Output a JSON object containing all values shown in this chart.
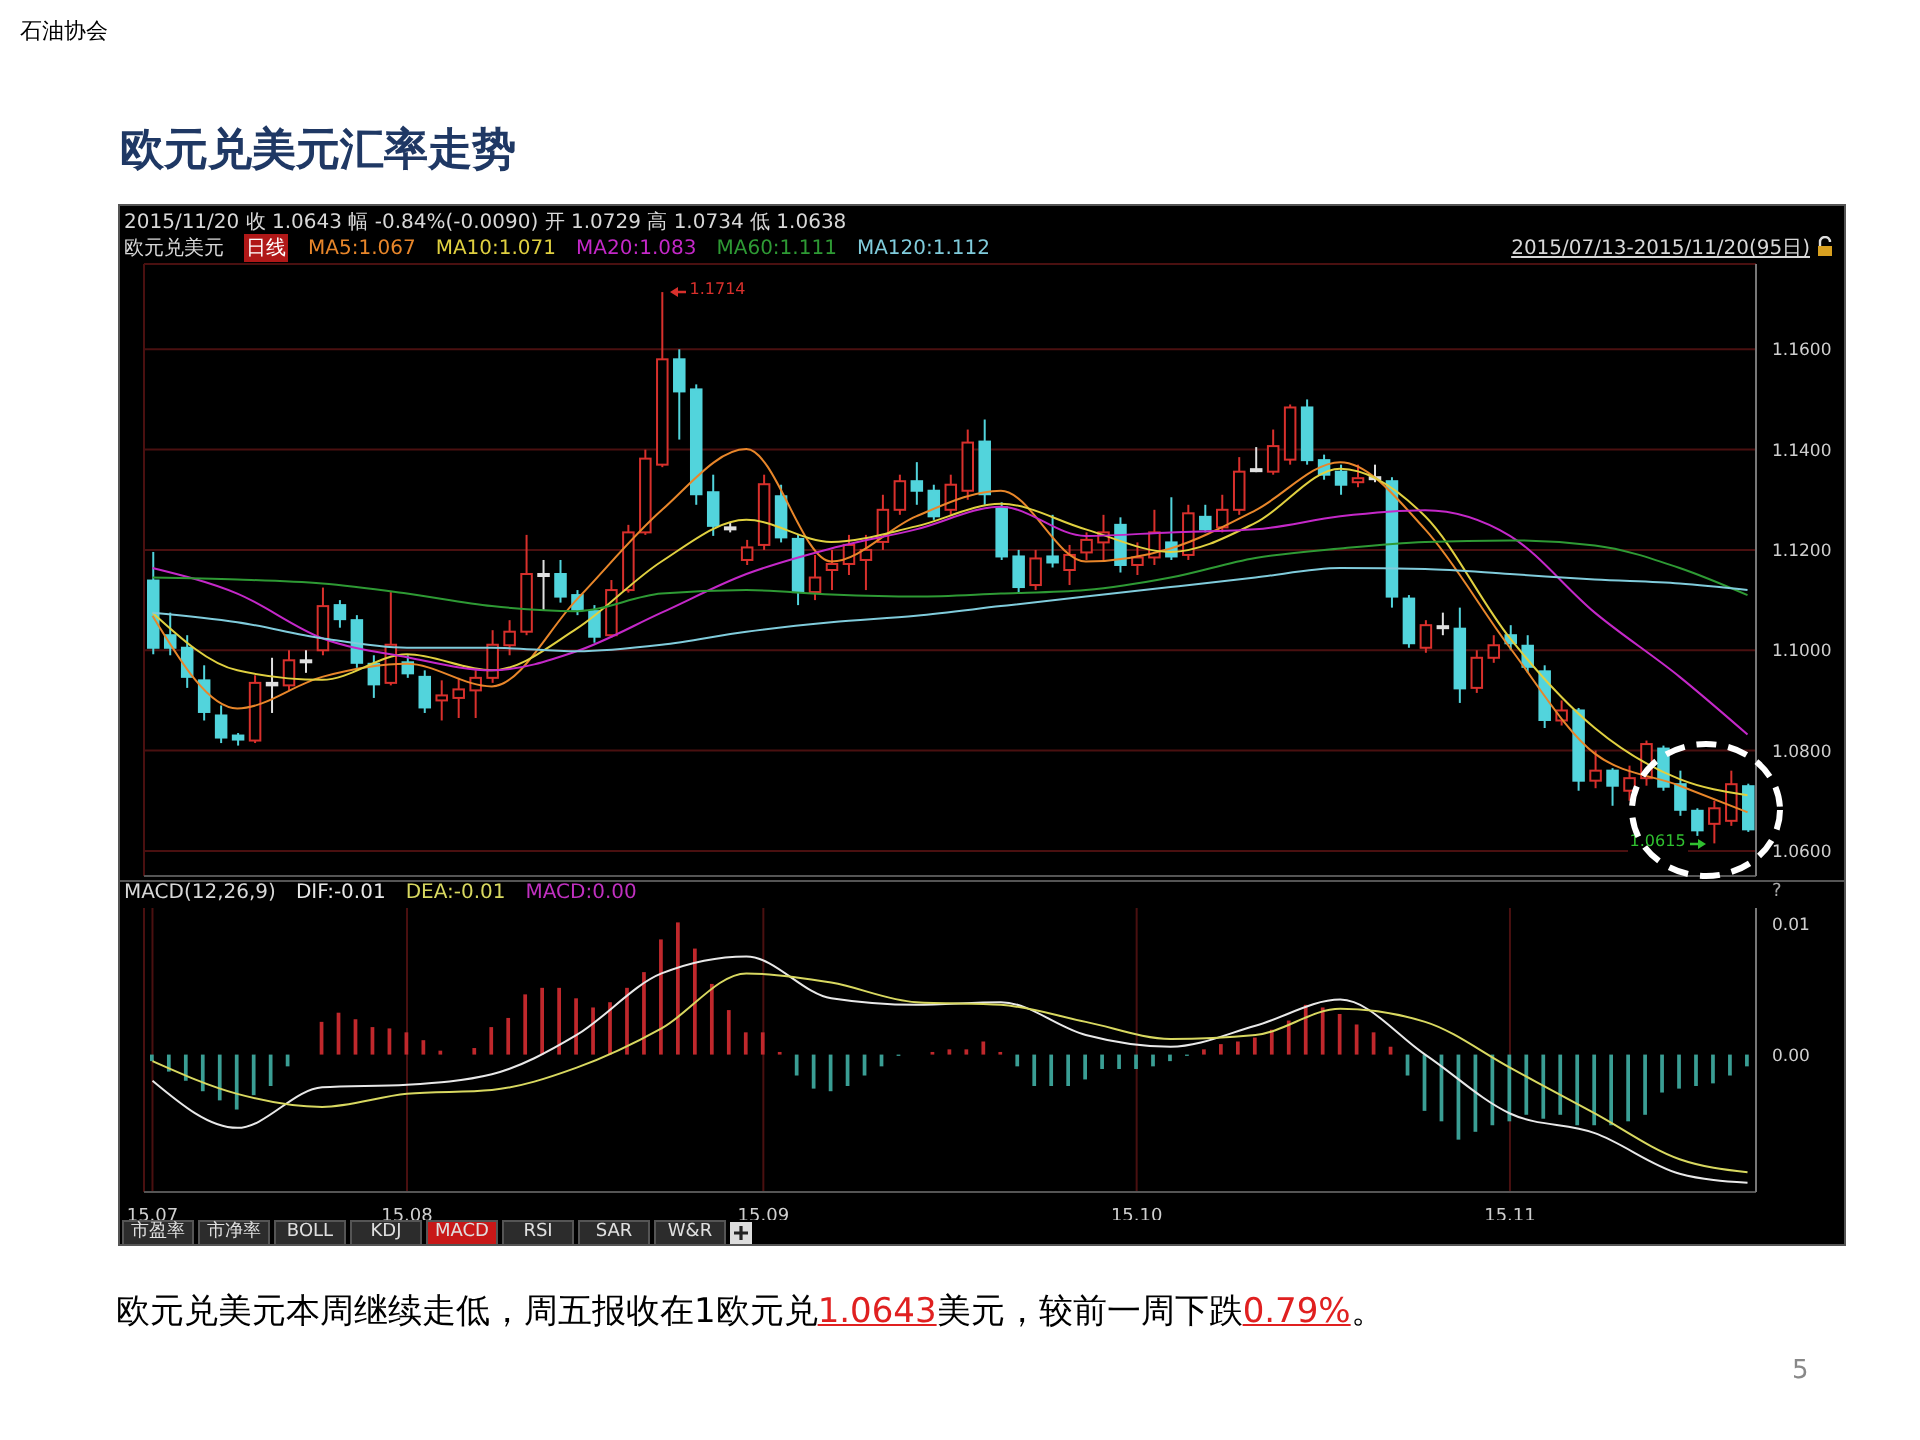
{
  "chart_data": [
    {
      "type": "candlestick",
      "title": "欧元兑美元汇率走势",
      "annotations": [
        "石油协会",
        "2015/11/20 收 1.0643 幅 -0.84%(-0.0090) 开 1.0729 高 1.0734 低 1.0638",
        "欧元兑美元",
        "日线",
        "2015/07/13-2015/11/20(95日)",
        "1.1714",
        "1.0615",
        "欧元兑美元本周继续走低，周五报收在1欧元兑1.0643美元，较前一周下跌0.79%。",
        "5"
      ],
      "categories": [
        "15.07",
        null,
        null,
        null,
        null,
        null,
        null,
        null,
        null,
        null,
        null,
        null,
        null,
        null,
        null,
        "15.08",
        null,
        null,
        null,
        null,
        null,
        null,
        null,
        null,
        null,
        null,
        null,
        null,
        null,
        null,
        null,
        null,
        null,
        null,
        null,
        null,
        "15.09",
        null,
        null,
        null,
        null,
        null,
        null,
        null,
        null,
        null,
        null,
        null,
        null,
        null,
        null,
        null,
        null,
        null,
        null,
        null,
        null,
        null,
        "15.10",
        null,
        null,
        null,
        null,
        null,
        null,
        null,
        null,
        null,
        null,
        null,
        null,
        null,
        null,
        null,
        null,
        null,
        null,
        null,
        null,
        null,
        "15.11",
        null,
        null,
        null,
        null,
        null,
        null,
        null,
        null,
        null,
        null,
        null,
        null,
        null,
        null
      ],
      "ohlc": [
        [
          1.1139,
          1.1196,
          1.0992,
          1.1005
        ],
        [
          1.103,
          1.1075,
          1.099,
          1.1005
        ],
        [
          1.1005,
          1.103,
          1.0925,
          1.0947
        ],
        [
          1.094,
          1.097,
          1.086,
          1.0877
        ],
        [
          1.087,
          1.089,
          1.0815,
          1.0826
        ],
        [
          1.083,
          1.0835,
          1.081,
          1.0822
        ],
        [
          1.082,
          1.095,
          1.0815,
          1.0935
        ],
        [
          1.0935,
          1.0985,
          1.0875,
          1.093
        ],
        [
          1.093,
          1.1,
          1.092,
          1.098
        ],
        [
          1.0978,
          1.1,
          1.0955,
          1.098
        ],
        [
          1.1,
          1.1125,
          1.099,
          1.1088
        ],
        [
          1.109,
          1.11,
          1.1045,
          1.1062
        ],
        [
          1.106,
          1.107,
          1.0965,
          1.0975
        ],
        [
          1.0973,
          1.099,
          1.0905,
          1.0932
        ],
        [
          1.0935,
          1.1116,
          1.093,
          1.1011
        ],
        [
          1.0976,
          1.099,
          1.0945,
          1.0954
        ],
        [
          1.0947,
          1.096,
          1.0875,
          1.0886
        ],
        [
          1.09,
          1.094,
          1.086,
          1.091
        ],
        [
          1.0905,
          1.0945,
          1.0865,
          1.0922
        ],
        [
          1.092,
          1.096,
          1.0865,
          1.0945
        ],
        [
          1.0945,
          1.104,
          1.0935,
          1.1011
        ],
        [
          1.101,
          1.106,
          1.099,
          1.1037
        ],
        [
          1.1037,
          1.123,
          1.103,
          1.1152
        ],
        [
          1.1152,
          1.118,
          1.108,
          1.115
        ],
        [
          1.1152,
          1.118,
          1.1095,
          1.1107
        ],
        [
          1.111,
          1.112,
          1.107,
          1.1081
        ],
        [
          1.1078,
          1.109,
          1.1015,
          1.1027
        ],
        [
          1.103,
          1.114,
          1.1025,
          1.112
        ],
        [
          1.112,
          1.125,
          1.1115,
          1.1235
        ],
        [
          1.1235,
          1.14,
          1.123,
          1.1382
        ],
        [
          1.137,
          1.1714,
          1.1365,
          1.158
        ],
        [
          1.158,
          1.16,
          1.142,
          1.1516
        ],
        [
          1.152,
          1.153,
          1.129,
          1.1311
        ],
        [
          1.1315,
          1.135,
          1.1228,
          1.1248
        ],
        [
          1.1245,
          1.1255,
          1.1235,
          1.1243
        ],
        [
          1.118,
          1.122,
          1.117,
          1.1205
        ],
        [
          1.121,
          1.135,
          1.12,
          1.1331
        ],
        [
          1.1307,
          1.133,
          1.1215,
          1.1225
        ],
        [
          1.1222,
          1.123,
          1.109,
          1.1116
        ],
        [
          1.1116,
          1.119,
          1.11,
          1.1145
        ],
        [
          1.116,
          1.12,
          1.112,
          1.1172
        ],
        [
          1.1172,
          1.123,
          1.115,
          1.121
        ],
        [
          1.118,
          1.123,
          1.112,
          1.12
        ],
        [
          1.1216,
          1.131,
          1.12,
          1.128
        ],
        [
          1.128,
          1.135,
          1.127,
          1.1337
        ],
        [
          1.1337,
          1.1375,
          1.129,
          1.1318
        ],
        [
          1.1318,
          1.133,
          1.126,
          1.1267
        ],
        [
          1.128,
          1.135,
          1.127,
          1.133
        ],
        [
          1.1318,
          1.144,
          1.13,
          1.1414
        ],
        [
          1.1416,
          1.146,
          1.129,
          1.1311
        ],
        [
          1.1285,
          1.1295,
          1.118,
          1.1187
        ],
        [
          1.1187,
          1.12,
          1.1115,
          1.1126
        ],
        [
          1.113,
          1.12,
          1.112,
          1.1183
        ],
        [
          1.1187,
          1.127,
          1.1165,
          1.1175
        ],
        [
          1.116,
          1.121,
          1.113,
          1.119
        ],
        [
          1.1195,
          1.1235,
          1.118,
          1.122
        ],
        [
          1.1215,
          1.127,
          1.118,
          1.1235
        ],
        [
          1.125,
          1.1265,
          1.1155,
          1.117
        ],
        [
          1.117,
          1.1215,
          1.115,
          1.1185
        ],
        [
          1.1185,
          1.128,
          1.117,
          1.1235
        ],
        [
          1.1215,
          1.1305,
          1.118,
          1.1187
        ],
        [
          1.119,
          1.129,
          1.118,
          1.1273
        ],
        [
          1.1266,
          1.129,
          1.1235,
          1.1241
        ],
        [
          1.1245,
          1.131,
          1.1235,
          1.128
        ],
        [
          1.128,
          1.1385,
          1.127,
          1.1356
        ],
        [
          1.1361,
          1.1405,
          1.1355,
          1.1358
        ],
        [
          1.1356,
          1.144,
          1.135,
          1.1407
        ],
        [
          1.138,
          1.149,
          1.137,
          1.1484
        ],
        [
          1.1484,
          1.15,
          1.137,
          1.1379
        ],
        [
          1.1379,
          1.139,
          1.134,
          1.135
        ],
        [
          1.1356,
          1.137,
          1.131,
          1.133
        ],
        [
          1.1335,
          1.137,
          1.1325,
          1.1343
        ],
        [
          1.1345,
          1.137,
          1.1335,
          1.1343
        ],
        [
          1.1337,
          1.1345,
          1.1085,
          1.1107
        ],
        [
          1.1103,
          1.111,
          1.1005,
          1.1014
        ],
        [
          1.1005,
          1.106,
          1.0995,
          1.105
        ],
        [
          1.1048,
          1.1075,
          1.103,
          1.1046
        ],
        [
          1.1043,
          1.1085,
          1.0895,
          1.0924
        ],
        [
          1.0925,
          1.1,
          1.0915,
          1.0985
        ],
        [
          1.0985,
          1.103,
          1.0975,
          1.101
        ],
        [
          1.103,
          1.105,
          1.1,
          1.1014
        ],
        [
          1.1009,
          1.103,
          1.0955,
          1.0967
        ],
        [
          1.0958,
          1.097,
          1.0845,
          1.0861
        ],
        [
          1.086,
          1.09,
          1.085,
          1.088
        ],
        [
          1.088,
          1.0885,
          1.072,
          1.074
        ],
        [
          1.074,
          1.08,
          1.0725,
          1.076
        ],
        [
          1.076,
          1.0765,
          1.069,
          1.073
        ],
        [
          1.072,
          1.077,
          1.07,
          1.0745
        ],
        [
          1.0745,
          1.082,
          1.073,
          1.0813
        ],
        [
          1.0804,
          1.081,
          1.072,
          1.0728
        ],
        [
          1.0733,
          1.076,
          1.067,
          1.0682
        ],
        [
          1.068,
          1.0685,
          1.063,
          1.0641
        ],
        [
          1.0654,
          1.07,
          1.0615,
          1.0685
        ],
        [
          1.066,
          1.076,
          1.065,
          1.0733
        ],
        [
          1.0729,
          1.0734,
          1.0638,
          1.0643
        ]
      ],
      "colors": [
        "#52d4dc",
        "#52d4dc",
        "#52d4dc",
        "#52d4dc",
        "#52d4dc",
        "#52d4dc",
        "#d8302c",
        "#e0e0e0",
        "#d8302c",
        "#e0e0e0",
        "#d8302c",
        "#52d4dc",
        "#52d4dc",
        "#52d4dc",
        "#d8302c",
        "#52d4dc",
        "#52d4dc",
        "#d8302c",
        "#d8302c",
        "#d8302c",
        "#d8302c",
        "#d8302c",
        "#d8302c",
        "#e0e0e0",
        "#52d4dc",
        "#52d4dc",
        "#52d4dc",
        "#d8302c",
        "#d8302c",
        "#d8302c",
        "#d8302c",
        "#52d4dc",
        "#52d4dc",
        "#52d4dc",
        "#e0e0e0",
        "#d8302c",
        "#d8302c",
        "#52d4dc",
        "#52d4dc",
        "#d8302c",
        "#d8302c",
        "#d8302c",
        "#d8302c",
        "#d8302c",
        "#d8302c",
        "#52d4dc",
        "#52d4dc",
        "#d8302c",
        "#d8302c",
        "#52d4dc",
        "#52d4dc",
        "#52d4dc",
        "#d8302c",
        "#52d4dc",
        "#d8302c",
        "#d8302c",
        "#d8302c",
        "#52d4dc",
        "#d8302c",
        "#d8302c",
        "#52d4dc",
        "#d8302c",
        "#52d4dc",
        "#d8302c",
        "#d8302c",
        "#e0e0e0",
        "#d8302c",
        "#d8302c",
        "#52d4dc",
        "#52d4dc",
        "#52d4dc",
        "#d8302c",
        "#e0e0e0",
        "#52d4dc",
        "#52d4dc",
        "#d8302c",
        "#e0e0e0",
        "#52d4dc",
        "#d8302c",
        "#d8302c",
        "#52d4dc",
        "#52d4dc",
        "#52d4dc",
        "#d8302c",
        "#52d4dc",
        "#d8302c",
        "#52d4dc",
        "#d8302c",
        "#d8302c",
        "#52d4dc",
        "#52d4dc",
        "#52d4dc",
        "#d8302c",
        "#d8302c",
        "#52d4dc"
      ],
      "series": [
        {
          "name": "MA5:1.067",
          "type": "line",
          "color": "#e8862a",
          "values": [
            1.1069,
            null,
            null,
            null,
            null,
            1.0884,
            null,
            null,
            null,
            null,
            1.0947,
            null,
            null,
            null,
            null,
            1.0973,
            null,
            null,
            null,
            null,
            1.0928,
            null,
            null,
            null,
            null,
            1.1101,
            null,
            null,
            null,
            null,
            1.1279,
            null,
            null,
            null,
            null,
            1.1401,
            null,
            null,
            null,
            null,
            1.1177,
            null,
            null,
            null,
            null,
            1.1267,
            null,
            null,
            null,
            null,
            1.1318,
            null,
            null,
            null,
            null,
            1.1177,
            null,
            null,
            null,
            null,
            1.1203,
            null,
            null,
            null,
            null,
            1.1279,
            null,
            null,
            null,
            null,
            1.1375,
            null,
            null,
            null,
            null,
            1.1241,
            null,
            null,
            null,
            null,
            1.1005,
            null,
            null,
            null,
            null,
            1.0794,
            null,
            null,
            null,
            null,
            1.073,
            null,
            null,
            null,
            1.0677
          ]
        },
        {
          "name": "MA10:1.071",
          "type": "line",
          "color": "#e0d040",
          "values": [
            1.1075,
            null,
            null,
            null,
            null,
            1.096,
            null,
            null,
            null,
            null,
            1.0941,
            null,
            null,
            null,
            null,
            1.0992,
            null,
            null,
            null,
            null,
            1.096,
            null,
            null,
            null,
            null,
            1.1043,
            null,
            null,
            null,
            null,
            1.1177,
            null,
            null,
            null,
            null,
            1.126,
            null,
            null,
            null,
            null,
            1.1216,
            null,
            null,
            null,
            null,
            1.1247,
            null,
            null,
            null,
            null,
            1.1292,
            null,
            null,
            null,
            null,
            1.1241,
            null,
            null,
            null,
            null,
            1.1196,
            null,
            null,
            null,
            null,
            1.1254,
            null,
            null,
            null,
            null,
            1.1362,
            null,
            null,
            null,
            null,
            1.1267,
            null,
            null,
            null,
            null,
            1.1024,
            null,
            null,
            null,
            null,
            1.0845,
            null,
            null,
            null,
            null,
            1.0743,
            null,
            null,
            null,
            1.0711
          ]
        },
        {
          "name": "MA20:1.083",
          "type": "line",
          "color": "#c428c8",
          "values": [
            1.1164,
            null,
            null,
            null,
            null,
            1.1113,
            null,
            null,
            null,
            null,
            1.1024,
            null,
            null,
            null,
            null,
            1.0986,
            null,
            null,
            null,
            null,
            1.096,
            null,
            null,
            null,
            null,
            1.0998,
            null,
            null,
            null,
            null,
            1.1075,
            null,
            null,
            null,
            null,
            1.1152,
            null,
            null,
            null,
            null,
            1.1203,
            null,
            null,
            null,
            null,
            1.1241,
            null,
            null,
            null,
            null,
            1.1286,
            null,
            null,
            null,
            null,
            1.1228,
            null,
            null,
            null,
            null,
            1.1235,
            null,
            null,
            null,
            null,
            1.1241,
            null,
            null,
            null,
            null,
            1.1267,
            null,
            null,
            null,
            null,
            1.1279,
            null,
            null,
            null,
            null,
            1.1228,
            null,
            null,
            null,
            null,
            1.1075,
            null,
            null,
            null,
            null,
            1.0947,
            null,
            null,
            null,
            1.0832
          ]
        },
        {
          "name": "MA60:1.111",
          "type": "line",
          "color": "#2e9a34",
          "values": [
            1.1145,
            null,
            null,
            null,
            null,
            1.1141,
            null,
            null,
            null,
            null,
            1.1133,
            null,
            null,
            null,
            null,
            1.1113,
            null,
            null,
            null,
            null,
            1.1088,
            null,
            null,
            null,
            null,
            1.1078,
            null,
            null,
            null,
            null,
            1.1113,
            null,
            null,
            null,
            null,
            1.112,
            null,
            null,
            null,
            null,
            1.1111,
            null,
            null,
            null,
            null,
            1.1107,
            null,
            null,
            null,
            null,
            1.1113,
            null,
            null,
            null,
            null,
            1.112,
            null,
            null,
            null,
            null,
            1.1145,
            null,
            null,
            null,
            null,
            1.1184,
            null,
            null,
            null,
            null,
            1.1203,
            null,
            null,
            null,
            null,
            1.1216,
            null,
            null,
            null,
            null,
            1.1219,
            null,
            null,
            null,
            null,
            1.1209,
            null,
            null,
            null,
            null,
            1.1164,
            null,
            null,
            null,
            1.111
          ]
        },
        {
          "name": "MA120:1.112",
          "type": "line",
          "color": "#80ccdc",
          "values": [
            1.1075,
            null,
            null,
            null,
            null,
            1.1056,
            null,
            null,
            null,
            null,
            1.1024,
            null,
            null,
            null,
            null,
            1.1005,
            null,
            null,
            null,
            null,
            1.1005,
            null,
            null,
            null,
            null,
            1.0998,
            null,
            null,
            null,
            null,
            1.1011,
            null,
            null,
            null,
            null,
            1.1037,
            null,
            null,
            null,
            null,
            1.1056,
            null,
            null,
            null,
            null,
            1.1069,
            null,
            null,
            null,
            null,
            1.1088,
            null,
            null,
            null,
            null,
            1.1107,
            null,
            null,
            null,
            null,
            1.1126,
            null,
            null,
            null,
            null,
            1.1145,
            null,
            null,
            null,
            null,
            1.1164,
            null,
            null,
            null,
            null,
            1.1162,
            null,
            null,
            null,
            null,
            1.1152,
            null,
            null,
            null,
            null,
            1.1141,
            null,
            null,
            null,
            null,
            1.1133,
            null,
            null,
            null,
            1.112
          ]
        }
      ],
      "ylim": [
        1.055,
        1.177
      ],
      "yticks": [
        {
          "value": 1.06,
          "label": "1.0600"
        },
        {
          "value": 1.08,
          "label": "1.0800"
        },
        {
          "value": 1.1,
          "label": "1.1000"
        },
        {
          "value": 1.12,
          "label": "1.1200"
        },
        {
          "value": 1.14,
          "label": "1.1400"
        },
        {
          "value": 1.16,
          "label": "1.1600"
        }
      ],
      "grid": true,
      "legend": "top left",
      "tick_labels": "y"
    },
    {
      "type": "bar",
      "legend_title": "MACD(12,26,9)",
      "annotations": [
        "?",
        "市盈率",
        "市净率",
        "BOLL",
        "KDJ",
        "MACD",
        "RSI",
        "SAR",
        "W&R"
      ],
      "categories": [
        "15.07",
        null,
        null,
        null,
        null,
        null,
        null,
        null,
        null,
        null,
        null,
        null,
        null,
        null,
        null,
        "15.08",
        null,
        null,
        null,
        null,
        null,
        null,
        null,
        null,
        null,
        null,
        null,
        null,
        null,
        null,
        null,
        null,
        null,
        null,
        null,
        null,
        "15.09",
        null,
        null,
        null,
        null,
        null,
        null,
        null,
        null,
        null,
        null,
        null,
        null,
        null,
        null,
        null,
        null,
        null,
        null,
        null,
        null,
        null,
        "15.10",
        null,
        null,
        null,
        null,
        null,
        null,
        null,
        null,
        null,
        null,
        null,
        null,
        null,
        null,
        null,
        null,
        null,
        null,
        null,
        null,
        null,
        "15.11",
        null,
        null,
        null,
        null,
        null,
        null,
        null,
        null,
        null,
        null,
        null,
        null,
        null,
        null
      ],
      "series": [
        {
          "name": "DIF:-0.01",
          "type": "line",
          "color": "#e8e8e8",
          "values": [
            -0.002,
            null,
            null,
            null,
            null,
            -0.0056,
            null,
            null,
            null,
            null,
            -0.0025,
            null,
            null,
            null,
            null,
            -0.0023,
            null,
            null,
            null,
            null,
            -0.0015,
            null,
            null,
            null,
            null,
            0.0015,
            null,
            null,
            null,
            null,
            0.0062,
            null,
            null,
            null,
            null,
            0.0075,
            null,
            null,
            null,
            null,
            0.0043,
            null,
            null,
            null,
            null,
            0.0038,
            null,
            null,
            null,
            null,
            0.004,
            null,
            null,
            null,
            null,
            0.0015,
            null,
            null,
            null,
            null,
            0.0006,
            null,
            null,
            null,
            null,
            0.0022,
            null,
            null,
            null,
            null,
            0.0042,
            null,
            null,
            null,
            null,
            0.0,
            null,
            null,
            null,
            null,
            -0.0045,
            null,
            null,
            null,
            null,
            -0.006,
            null,
            null,
            null,
            null,
            -0.0091,
            null,
            null,
            null,
            -0.0098
          ]
        },
        {
          "name": "DEA:-0.01",
          "type": "line",
          "color": "#d8d860",
          "values": [
            -0.0005,
            null,
            null,
            null,
            null,
            -0.003,
            null,
            null,
            null,
            null,
            -0.004,
            null,
            null,
            null,
            null,
            -0.003,
            null,
            null,
            null,
            null,
            -0.0027,
            null,
            null,
            null,
            null,
            -0.001,
            null,
            null,
            null,
            null,
            0.002,
            null,
            null,
            null,
            null,
            0.0062,
            null,
            null,
            null,
            null,
            0.0055,
            null,
            null,
            null,
            null,
            0.004,
            null,
            null,
            null,
            null,
            0.0038,
            null,
            null,
            null,
            null,
            0.0025,
            null,
            null,
            null,
            null,
            0.0012,
            null,
            null,
            null,
            null,
            0.0015,
            null,
            null,
            null,
            null,
            0.0035,
            null,
            null,
            null,
            null,
            0.0025,
            null,
            null,
            null,
            null,
            -0.001,
            null,
            null,
            null,
            null,
            -0.0045,
            null,
            null,
            null,
            null,
            -0.008,
            null,
            null,
            null,
            -0.009
          ]
        },
        {
          "name": "MACD:0.00",
          "type": "bar",
          "color": "#c030c0",
          "colors": [
            "#3a9e94",
            "#3a9e94",
            "#3a9e94",
            "#3a9e94",
            "#3a9e94",
            "#3a9e94",
            "#3a9e94",
            "#3a9e94",
            "#3a9e94",
            "#c0282c",
            "#c0282c",
            "#c0282c",
            "#c0282c",
            "#c0282c",
            "#c0282c",
            "#c0282c",
            "#c0282c",
            "#c0282c",
            "#c0282c",
            "#c0282c",
            "#c0282c",
            "#c0282c",
            "#c0282c",
            "#c0282c",
            "#c0282c",
            "#c0282c",
            "#c0282c",
            "#c0282c",
            "#c0282c",
            "#c0282c",
            "#c0282c",
            "#c0282c",
            "#c0282c",
            "#c0282c",
            "#c0282c",
            "#c0282c",
            "#c0282c",
            "#c0282c",
            "#3a9e94",
            "#3a9e94",
            "#3a9e94",
            "#3a9e94",
            "#3a9e94",
            "#3a9e94",
            "#3a9e94",
            "#c0282c",
            "#c0282c",
            "#c0282c",
            "#c0282c",
            "#c0282c",
            "#c0282c",
            "#3a9e94",
            "#3a9e94",
            "#3a9e94",
            "#3a9e94",
            "#3a9e94",
            "#3a9e94",
            "#3a9e94",
            "#3a9e94",
            "#3a9e94",
            "#3a9e94",
            "#3a9e94",
            "#c0282c",
            "#c0282c",
            "#c0282c",
            "#c0282c",
            "#c0282c",
            "#c0282c",
            "#c0282c",
            "#c0282c",
            "#c0282c",
            "#c0282c",
            "#c0282c",
            "#c0282c",
            "#3a9e94",
            "#3a9e94",
            "#3a9e94",
            "#3a9e94",
            "#3a9e94",
            "#3a9e94",
            "#3a9e94",
            "#3a9e94",
            "#3a9e94",
            "#3a9e94",
            "#3a9e94",
            "#3a9e94",
            "#3a9e94",
            "#3a9e94",
            "#3a9e94",
            "#3a9e94",
            "#3a9e94",
            "#3a9e94",
            "#3a9e94",
            "#3a9e94",
            "#3a9e94"
          ],
          "values": [
            -0.0005,
            -0.0013,
            -0.002,
            -0.0028,
            -0.0035,
            -0.0042,
            -0.0031,
            -0.0024,
            -0.0009,
            0.0,
            0.0025,
            0.0032,
            0.0027,
            0.0021,
            0.002,
            0.0017,
            0.0011,
            0.0003,
            0.0,
            0.0005,
            0.0021,
            0.0028,
            0.0046,
            0.0051,
            0.0051,
            0.0043,
            0.0036,
            0.004,
            0.0051,
            0.0063,
            0.0088,
            0.0101,
            0.0081,
            0.0054,
            0.0034,
            0.0017,
            0.0017,
            0.0002,
            -0.0016,
            -0.0026,
            -0.0028,
            -0.0024,
            -0.0016,
            -0.0009,
            -0.0001,
            0.0,
            0.0002,
            0.0004,
            0.0004,
            0.001,
            0.0002,
            -0.0009,
            -0.0024,
            -0.0024,
            -0.0024,
            -0.0019,
            -0.0011,
            -0.0011,
            -0.0011,
            -0.0009,
            -0.0005,
            -0.0001,
            0.0004,
            0.0008,
            0.001,
            0.0013,
            0.0019,
            0.0026,
            0.0038,
            0.0036,
            0.0031,
            0.0023,
            0.0017,
            0.0006,
            -0.0016,
            -0.0043,
            -0.0051,
            -0.0065,
            -0.0059,
            -0.0054,
            -0.0051,
            -0.0046,
            -0.0049,
            -0.0046,
            -0.0054,
            -0.0054,
            -0.0054,
            -0.0051,
            -0.0046,
            -0.0029,
            -0.0026,
            -0.0024,
            -0.0022,
            -0.0016,
            -0.0009
          ]
        }
      ],
      "ylim": [
        -0.0105,
        0.0112
      ],
      "yticks": [
        {
          "value": 0,
          "label": "0.00"
        },
        {
          "value": 0.01,
          "label": "0.01"
        }
      ],
      "grid": "x",
      "legend": "top left"
    }
  ]
}
